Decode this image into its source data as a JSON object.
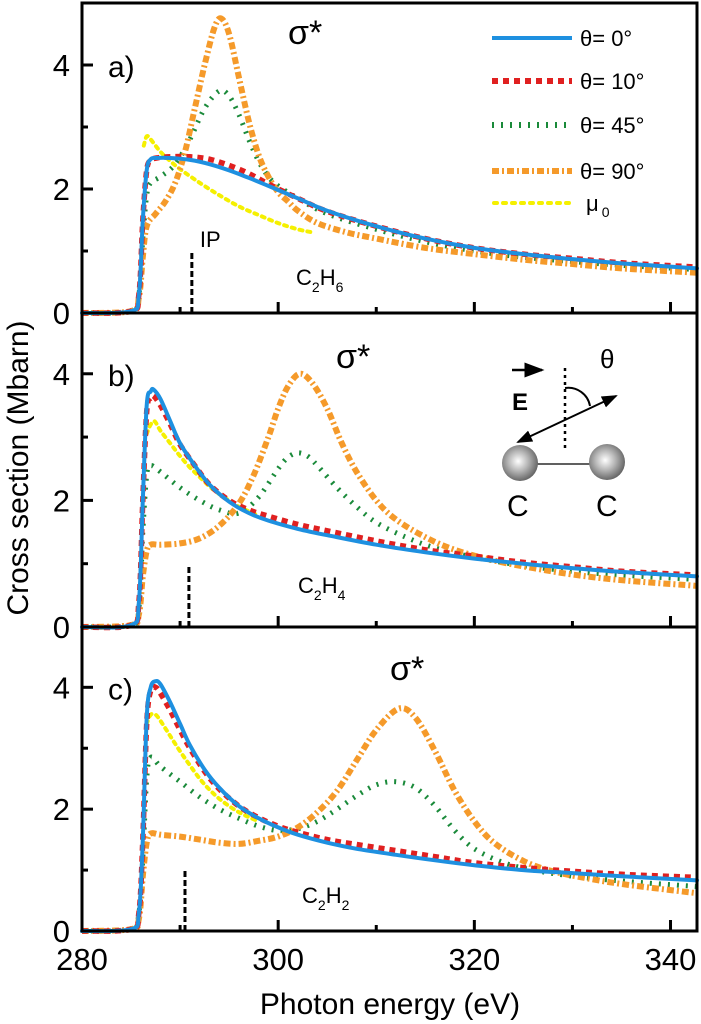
{
  "chart_data": {
    "type": "line",
    "xlabel": "Photon energy (eV)",
    "ylabel": "Cross section (Mbarn)",
    "xlim": [
      280,
      342.7
    ],
    "xticks": [
      280,
      300,
      320,
      340
    ],
    "xminor": [
      290,
      310,
      330
    ],
    "legend": {
      "placement": "top-right of panel a",
      "entries": [
        {
          "label": "θ= 0°",
          "color": "#1e90e0",
          "style": "solid"
        },
        {
          "label": "θ= 10°",
          "color": "#e02020",
          "style": "dashed"
        },
        {
          "label": "θ= 45°",
          "color": "#1a8a3a",
          "style": "dotted"
        },
        {
          "label": "θ= 90°",
          "color": "#f59a2a",
          "style": "dashdot"
        },
        {
          "label": "μ",
          "sub": "0",
          "color": "#f5f000",
          "style": "dotted"
        }
      ]
    },
    "panels": [
      {
        "label": "a)",
        "molecule": {
          "base": "C",
          "n1": "2",
          "mid": "H",
          "n2": "6"
        },
        "sigma_label": "σ*",
        "ip_label": "IP",
        "ip_energy": 291.2,
        "ip_height": 1.0,
        "ylim": [
          0,
          5.0
        ],
        "yticks": [
          0,
          2,
          4
        ],
        "yminor": [
          1,
          3
        ],
        "series": [
          {
            "name": "θ= 0°",
            "x": [
              280,
              285,
              285.8,
              286.2,
              286.6,
              287,
              287.6,
              289,
              291,
              293,
              295,
              297,
              299,
              302,
              305,
              310,
              315,
              320,
              325,
              330,
              335,
              342.7
            ],
            "y": [
              0,
              0.03,
              0.3,
              1.5,
              2.3,
              2.48,
              2.5,
              2.5,
              2.47,
              2.4,
              2.3,
              2.18,
              2.05,
              1.85,
              1.65,
              1.4,
              1.2,
              1.05,
              0.95,
              0.87,
              0.8,
              0.72
            ]
          },
          {
            "name": "θ= 10°",
            "x": [
              280,
              285,
              285.8,
              286.2,
              286.6,
              287,
              287.6,
              289,
              291,
              293,
              295,
              297,
              299,
              302,
              305,
              310,
              315,
              320,
              325,
              330,
              335,
              342.7
            ],
            "y": [
              0,
              0.03,
              0.3,
              1.5,
              2.3,
              2.46,
              2.5,
              2.52,
              2.52,
              2.48,
              2.38,
              2.25,
              2.08,
              1.85,
              1.64,
              1.4,
              1.2,
              1.05,
              0.95,
              0.88,
              0.81,
              0.74
            ]
          },
          {
            "name": "θ= 45°",
            "x": [
              280,
              285,
              285.8,
              286.2,
              286.6,
              287,
              288,
              289.5,
              291,
              292.5,
              294,
              295,
              296,
              297,
              298,
              299,
              300,
              302,
              305,
              310,
              315,
              320,
              325,
              330,
              335,
              342.7
            ],
            "y": [
              0,
              0.03,
              0.3,
              1.2,
              1.9,
              2.1,
              2.2,
              2.4,
              2.8,
              3.3,
              3.58,
              3.5,
              3.2,
              2.8,
              2.45,
              2.2,
              2.05,
              1.85,
              1.6,
              1.35,
              1.15,
              1.0,
              0.9,
              0.83,
              0.77,
              0.7
            ]
          },
          {
            "name": "θ= 90°",
            "x": [
              280,
              285,
              285.8,
              286.2,
              286.6,
              287.5,
              288.5,
              289.5,
              290.5,
              291.5,
              292.5,
              293.5,
              294.2,
              295,
              296,
              297,
              298,
              299,
              300,
              301,
              302,
              304,
              307,
              310,
              315,
              320,
              325,
              330,
              335,
              342.7
            ],
            "y": [
              0,
              0.03,
              0.25,
              0.9,
              1.4,
              1.6,
              1.8,
              2.1,
              2.6,
              3.3,
              4.0,
              4.6,
              4.75,
              4.5,
              3.8,
              3.1,
              2.55,
              2.2,
              1.95,
              1.8,
              1.65,
              1.45,
              1.3,
              1.2,
              1.05,
              0.95,
              0.86,
              0.79,
              0.72,
              0.65
            ]
          },
          {
            "name": "μ0",
            "x": [
              286.3,
              286.6,
              287,
              288,
              289,
              290,
              292,
              294,
              296,
              298,
              300,
              302,
              303.5
            ],
            "y": [
              2.7,
              2.85,
              2.8,
              2.6,
              2.45,
              2.32,
              2.1,
              1.9,
              1.72,
              1.58,
              1.45,
              1.35,
              1.3
            ]
          }
        ]
      },
      {
        "label": "b)",
        "molecule": {
          "base": "C",
          "n1": "2",
          "mid": "H",
          "n2": "4"
        },
        "sigma_label": "σ*",
        "ip_energy": 290.9,
        "ip_height": 0.95,
        "ylim": [
          0,
          4.96
        ],
        "yticks": [
          0,
          2,
          4
        ],
        "yminor": [
          1,
          3
        ],
        "series": [
          {
            "name": "θ= 0°",
            "x": [
              280,
              285,
              285.8,
              286.2,
              286.6,
              287,
              287.3,
              288,
              289,
              290,
              291.5,
              293,
              295,
              297,
              299,
              302,
              305,
              310,
              315,
              320,
              325,
              330,
              335,
              342.7
            ],
            "y": [
              0,
              0.03,
              0.4,
              2.0,
              3.5,
              3.72,
              3.75,
              3.6,
              3.25,
              2.9,
              2.55,
              2.25,
              1.98,
              1.8,
              1.68,
              1.55,
              1.45,
              1.3,
              1.18,
              1.08,
              1.0,
              0.93,
              0.87,
              0.8
            ]
          },
          {
            "name": "θ= 10°",
            "x": [
              280,
              285,
              285.8,
              286.2,
              286.6,
              287,
              287.3,
              288,
              289,
              290,
              291.5,
              293,
              295,
              297,
              299,
              302,
              305,
              310,
              315,
              320,
              325,
              330,
              335,
              342.7
            ],
            "y": [
              0,
              0.03,
              0.4,
              2.0,
              3.4,
              3.62,
              3.65,
              3.5,
              3.2,
              2.88,
              2.55,
              2.25,
              2.0,
              1.85,
              1.75,
              1.62,
              1.52,
              1.36,
              1.22,
              1.12,
              1.02,
              0.95,
              0.88,
              0.82
            ]
          },
          {
            "name": "θ= 45°",
            "x": [
              280,
              285,
              285.8,
              286.2,
              286.6,
              287,
              288,
              290,
              292,
              294,
              296,
              298,
              300,
              301,
              302,
              303,
              304,
              306,
              308,
              310,
              313,
              316,
              320,
              325,
              330,
              335,
              342.7
            ],
            "y": [
              0,
              0.03,
              0.3,
              1.5,
              2.4,
              2.55,
              2.45,
              2.2,
              2.0,
              1.85,
              1.8,
              2.05,
              2.5,
              2.68,
              2.75,
              2.7,
              2.55,
              2.2,
              1.9,
              1.65,
              1.42,
              1.25,
              1.1,
              0.97,
              0.88,
              0.82,
              0.75
            ]
          },
          {
            "name": "θ= 90°",
            "x": [
              280,
              285,
              285.8,
              286.2,
              286.6,
              287,
              288,
              290,
              292,
              294,
              296,
              297.5,
              299,
              300,
              301,
              302.2,
              303.5,
              305,
              306.5,
              308,
              310,
              312,
              315,
              318,
              322,
              326,
              330,
              335,
              342.7
            ],
            "y": [
              0,
              0.03,
              0.2,
              0.8,
              1.2,
              1.3,
              1.3,
              1.32,
              1.4,
              1.6,
              1.95,
              2.4,
              3.0,
              3.45,
              3.8,
              4.0,
              3.85,
              3.45,
              2.9,
              2.45,
              2.0,
              1.7,
              1.42,
              1.22,
              1.05,
              0.93,
              0.83,
              0.74,
              0.65
            ]
          },
          {
            "name": "μ0",
            "x": [
              286.6,
              287,
              287.4,
              288,
              289,
              290,
              291,
              292,
              293,
              294,
              295,
              296,
              298
            ],
            "y": [
              3.05,
              3.2,
              3.25,
              3.1,
              2.9,
              2.7,
              2.52,
              2.37,
              2.22,
              2.1,
              2.0,
              1.9,
              1.76
            ]
          }
        ]
      },
      {
        "label": "c)",
        "molecule": {
          "base": "C",
          "n1": "2",
          "mid": "H",
          "n2": "2"
        },
        "sigma_label": "σ*",
        "ip_energy": 290.5,
        "ip_height": 1.0,
        "ylim": [
          0,
          4.99
        ],
        "yticks": [
          0,
          2,
          4
        ],
        "yminor": [
          1,
          3
        ],
        "series": [
          {
            "name": "θ= 0°",
            "x": [
              280,
              285,
              285.8,
              286.2,
              286.6,
              287,
              287.5,
              288,
              289,
              290,
              291,
              292.5,
              294,
              296,
              298,
              300,
              302,
              305,
              308,
              312,
              316,
              320,
              325,
              330,
              335,
              342.7
            ],
            "y": [
              0,
              0.03,
              0.3,
              1.5,
              3.5,
              4.0,
              4.1,
              4.05,
              3.75,
              3.4,
              3.05,
              2.65,
              2.35,
              2.05,
              1.85,
              1.7,
              1.58,
              1.45,
              1.35,
              1.25,
              1.16,
              1.08,
              1.0,
              0.95,
              0.9,
              0.83
            ]
          },
          {
            "name": "θ= 10°",
            "x": [
              280,
              285,
              285.8,
              286.2,
              286.6,
              287,
              287.5,
              288,
              289,
              290,
              291,
              292.5,
              294,
              296,
              298,
              300,
              302,
              305,
              308,
              312,
              316,
              320,
              325,
              330,
              335,
              342.7
            ],
            "y": [
              0,
              0.03,
              0.3,
              1.5,
              3.4,
              3.95,
              4.0,
              3.9,
              3.62,
              3.3,
              3.0,
              2.62,
              2.33,
              2.05,
              1.86,
              1.72,
              1.62,
              1.5,
              1.42,
              1.32,
              1.22,
              1.12,
              1.04,
              0.98,
              0.93,
              0.88
            ]
          },
          {
            "name": "θ= 45°",
            "x": [
              280,
              285,
              285.8,
              286.2,
              286.6,
              287,
              288,
              290,
              292,
              294,
              296,
              298,
              300,
              302,
              304,
              306,
              308,
              310,
              312,
              314,
              316,
              318,
              320,
              323,
              326,
              330,
              335,
              342.7
            ],
            "y": [
              0,
              0.03,
              0.3,
              1.2,
              2.5,
              2.85,
              2.7,
              2.45,
              2.2,
              2.0,
              1.85,
              1.72,
              1.65,
              1.68,
              1.8,
              2.0,
              2.22,
              2.4,
              2.45,
              2.35,
              2.05,
              1.65,
              1.35,
              1.12,
              1.0,
              0.9,
              0.82,
              0.73
            ]
          },
          {
            "name": "θ= 90°",
            "x": [
              280,
              285,
              285.8,
              286.2,
              286.6,
              287,
              288,
              290,
              292,
              294,
              296,
              298,
              300,
              302,
              304,
              306,
              308,
              310,
              312.3,
              314,
              316,
              318,
              320,
              322,
              325,
              328,
              332,
              336,
              342.7
            ],
            "y": [
              0,
              0.03,
              0.2,
              0.9,
              1.45,
              1.6,
              1.58,
              1.55,
              1.5,
              1.45,
              1.43,
              1.48,
              1.55,
              1.7,
              1.95,
              2.3,
              2.8,
              3.3,
              3.65,
              3.5,
              2.95,
              2.3,
              1.8,
              1.45,
              1.15,
              0.98,
              0.85,
              0.75,
              0.62
            ]
          },
          {
            "name": "μ0",
            "x": [
              286.6,
              287,
              287.5,
              288,
              289,
              290,
              291,
              292,
              293,
              294,
              295,
              296,
              297,
              298
            ],
            "y": [
              3.4,
              3.55,
              3.55,
              3.45,
              3.2,
              2.95,
              2.72,
              2.5,
              2.32,
              2.17,
              2.05,
              1.95,
              1.87,
              1.8
            ]
          }
        ]
      }
    ]
  },
  "inset": {
    "field_label": "E",
    "angle_label": "θ",
    "atom1_label": "C",
    "atom2_label": "C"
  }
}
